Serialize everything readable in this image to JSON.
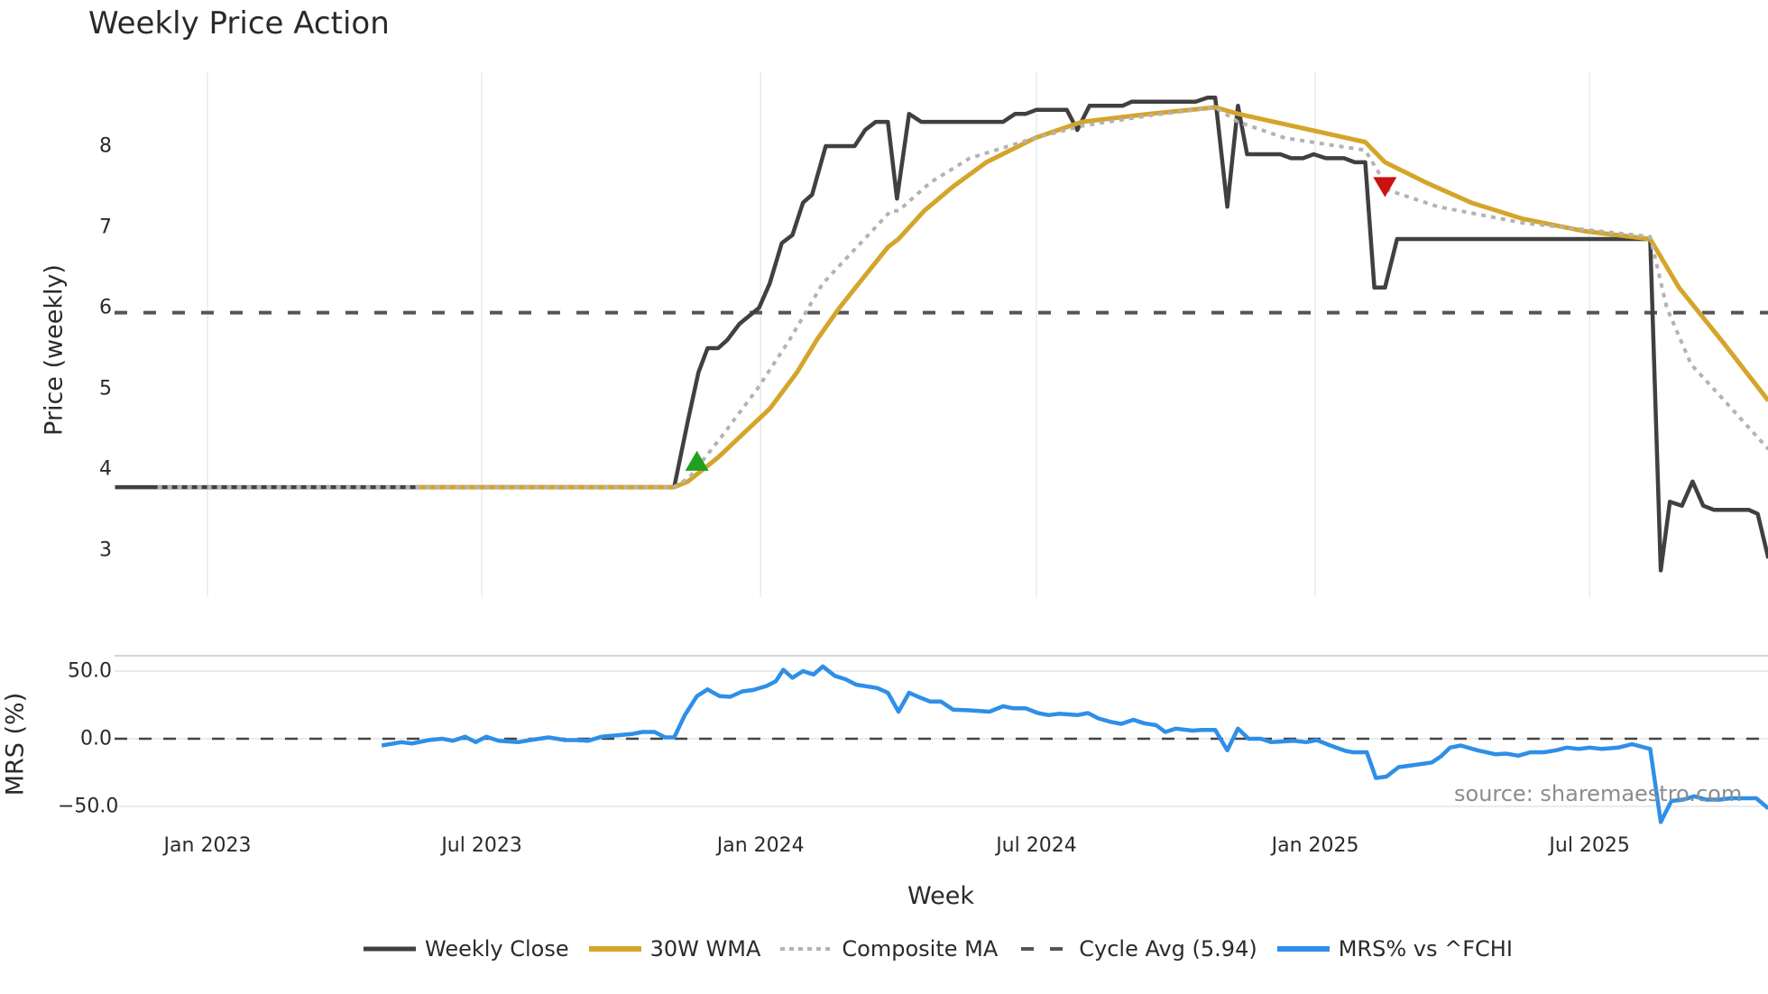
{
  "title": "Weekly Price Action",
  "source_note": "source: sharemaestro.com",
  "colors": {
    "weekly_close": "#404040",
    "wma": "#d4a52a",
    "composite": "#b3b3b3",
    "cycle_avg": "#555555",
    "mrs": "#2e8fe8",
    "buy_marker": "#1fa01f",
    "sell_marker": "#cc1111",
    "grid": "#e6ebf0"
  },
  "legend": [
    {
      "key": "weekly_close",
      "label": "Weekly Close",
      "style": "solid"
    },
    {
      "key": "wma",
      "label": "30W WMA",
      "style": "solid"
    },
    {
      "key": "composite",
      "label": "Composite MA",
      "style": "dot"
    },
    {
      "key": "cycle_avg",
      "label": "Cycle Avg (5.94)",
      "style": "dash"
    },
    {
      "key": "mrs",
      "label": "MRS% vs ^FCHI",
      "style": "solid"
    }
  ],
  "chart_data": [
    {
      "type": "line",
      "title": "Weekly Price Action",
      "xlabel": "Week",
      "ylabel": "Price (weekly)",
      "x_origin": "2023-01-01",
      "x_unit": "days since Jan 2023",
      "x_range": [
        -61,
        1030
      ],
      "ylim": [
        2.4,
        8.9
      ],
      "yticks": [
        3,
        4,
        5,
        6,
        7,
        8
      ],
      "xticks": [
        {
          "label": "Jan 2023",
          "x": 0
        },
        {
          "label": "Jul 2023",
          "x": 181
        },
        {
          "label": "Jan 2024",
          "x": 365
        },
        {
          "label": "Jul 2024",
          "x": 547
        },
        {
          "label": "Jan 2025",
          "x": 731
        },
        {
          "label": "Jul 2025",
          "x": 912
        }
      ],
      "grid": true,
      "hlines": [
        {
          "name": "Cycle Avg",
          "y": 5.94,
          "style": "dash"
        }
      ],
      "series": [
        {
          "name": "Weekly Close",
          "key": "weekly_close",
          "points": [
            [
              -61,
              3.78
            ],
            [
              308,
              3.78
            ],
            [
              317,
              4.6
            ],
            [
              324,
              5.2
            ],
            [
              330,
              5.5
            ],
            [
              337,
              5.5
            ],
            [
              343,
              5.6
            ],
            [
              351,
              5.8
            ],
            [
              364,
              6.0
            ],
            [
              371,
              6.3
            ],
            [
              379,
              6.8
            ],
            [
              386,
              6.9
            ],
            [
              393,
              7.3
            ],
            [
              399,
              7.4
            ],
            [
              408,
              8.0
            ],
            [
              427,
              8.0
            ],
            [
              434,
              8.2
            ],
            [
              441,
              8.3
            ],
            [
              449,
              8.3
            ],
            [
              455,
              7.35
            ],
            [
              463,
              8.4
            ],
            [
              471,
              8.3
            ],
            [
              525,
              8.3
            ],
            [
              533,
              8.4
            ],
            [
              540,
              8.4
            ],
            [
              547,
              8.45
            ],
            [
              567,
              8.45
            ],
            [
              574,
              8.2
            ],
            [
              582,
              8.5
            ],
            [
              604,
              8.5
            ],
            [
              610,
              8.55
            ],
            [
              652,
              8.55
            ],
            [
              660,
              8.6
            ],
            [
              665,
              8.6
            ],
            [
              673,
              7.25
            ],
            [
              680,
              8.5
            ],
            [
              686,
              7.9
            ],
            [
              708,
              7.9
            ],
            [
              715,
              7.85
            ],
            [
              723,
              7.85
            ],
            [
              730,
              7.9
            ],
            [
              738,
              7.85
            ],
            [
              750,
              7.85
            ],
            [
              757,
              7.8
            ],
            [
              764,
              7.8
            ],
            [
              770,
              6.25
            ],
            [
              777,
              6.25
            ],
            [
              785,
              6.85
            ],
            [
              952,
              6.85
            ],
            [
              959,
              2.75
            ],
            [
              965,
              3.6
            ],
            [
              973,
              3.55
            ],
            [
              980,
              3.85
            ],
            [
              987,
              3.55
            ],
            [
              994,
              3.5
            ],
            [
              1017,
              3.5
            ],
            [
              1023,
              3.45
            ],
            [
              1030,
              2.9
            ]
          ]
        },
        {
          "name": "30W WMA",
          "key": "wma",
          "points": [
            [
              139,
              3.78
            ],
            [
              308,
              3.78
            ],
            [
              317,
              3.85
            ],
            [
              337,
              4.15
            ],
            [
              354,
              4.45
            ],
            [
              371,
              4.75
            ],
            [
              389,
              5.2
            ],
            [
              402,
              5.6
            ],
            [
              417,
              6.0
            ],
            [
              434,
              6.4
            ],
            [
              449,
              6.75
            ],
            [
              456,
              6.85
            ],
            [
              473,
              7.2
            ],
            [
              492,
              7.5
            ],
            [
              514,
              7.8
            ],
            [
              546,
              8.1
            ],
            [
              577,
              8.3
            ],
            [
              622,
              8.4
            ],
            [
              665,
              8.48
            ],
            [
              680,
              8.4
            ],
            [
              764,
              8.05
            ],
            [
              777,
              7.8
            ],
            [
              804,
              7.55
            ],
            [
              834,
              7.3
            ],
            [
              868,
              7.1
            ],
            [
              908,
              6.95
            ],
            [
              952,
              6.85
            ],
            [
              971,
              6.25
            ],
            [
              1001,
              5.55
            ],
            [
              1030,
              4.85
            ]
          ]
        },
        {
          "name": "Composite MA",
          "key": "composite",
          "points": [
            [
              -33,
              3.78
            ],
            [
              308,
              3.78
            ],
            [
              318,
              3.9
            ],
            [
              339,
              4.4
            ],
            [
              363,
              5.0
            ],
            [
              384,
              5.6
            ],
            [
              406,
              6.3
            ],
            [
              436,
              6.9
            ],
            [
              451,
              7.2
            ],
            [
              456,
              7.2
            ],
            [
              477,
              7.55
            ],
            [
              503,
              7.85
            ],
            [
              546,
              8.1
            ],
            [
              577,
              8.25
            ],
            [
              622,
              8.38
            ],
            [
              665,
              8.48
            ],
            [
              680,
              8.3
            ],
            [
              711,
              8.1
            ],
            [
              764,
              7.95
            ],
            [
              780,
              7.45
            ],
            [
              812,
              7.25
            ],
            [
              868,
              7.05
            ],
            [
              952,
              6.88
            ],
            [
              963,
              6.0
            ],
            [
              979,
              5.3
            ],
            [
              1001,
              4.85
            ],
            [
              1030,
              4.25
            ]
          ]
        }
      ],
      "markers": [
        {
          "name": "buy-signal",
          "shape": "triangle-up",
          "x": 323,
          "y": 4.1
        },
        {
          "name": "sell-signal",
          "shape": "triangle-down",
          "x": 777,
          "y": 7.5
        }
      ]
    },
    {
      "type": "line",
      "title": "",
      "xlabel": "Week",
      "ylabel": "MRS (%)",
      "x_origin": "2023-01-01",
      "ylim": [
        -62,
        61
      ],
      "yticks": [
        -50.0,
        0.0,
        50.0
      ],
      "ytick_labels": [
        "−50.0",
        "0.0",
        "50.0"
      ],
      "hlines": [
        {
          "name": "zero",
          "y": 0,
          "style": "dash"
        }
      ],
      "series": [
        {
          "name": "MRS% vs ^FCHI",
          "key": "mrs",
          "points": [
            [
              115,
              -5
            ],
            [
              128,
              -2.5
            ],
            [
              135,
              -3.5
            ],
            [
              146,
              -1
            ],
            [
              155,
              0
            ],
            [
              162,
              -1.5
            ],
            [
              170,
              1.5
            ],
            [
              177,
              -2.5
            ],
            [
              184,
              1.5
            ],
            [
              192,
              -1.5
            ],
            [
              205,
              -2.5
            ],
            [
              213,
              -1
            ],
            [
              225,
              1
            ],
            [
              236,
              -1
            ],
            [
              244,
              -1
            ],
            [
              251,
              -1.5
            ],
            [
              260,
              1.5
            ],
            [
              280,
              3.5
            ],
            [
              287,
              5
            ],
            [
              295,
              5
            ],
            [
              302,
              1
            ],
            [
              308,
              1
            ],
            [
              315,
              17.5
            ],
            [
              323,
              31.5
            ],
            [
              330,
              36.5
            ],
            [
              338,
              31.5
            ],
            [
              345,
              31
            ],
            [
              353,
              35
            ],
            [
              360,
              36
            ],
            [
              369,
              39
            ],
            [
              375,
              42.5
            ],
            [
              380,
              51
            ],
            [
              386,
              45
            ],
            [
              393,
              50
            ],
            [
              400,
              47.5
            ],
            [
              406,
              53.5
            ],
            [
              414,
              46.5
            ],
            [
              421,
              44
            ],
            [
              428,
              40
            ],
            [
              442,
              37.5
            ],
            [
              449,
              34
            ],
            [
              456,
              20
            ],
            [
              463,
              34
            ],
            [
              469,
              31
            ],
            [
              477,
              27.5
            ],
            [
              484,
              27.5
            ],
            [
              492,
              21.5
            ],
            [
              503,
              21
            ],
            [
              516,
              20
            ],
            [
              525,
              24
            ],
            [
              532,
              22.5
            ],
            [
              540,
              22.5
            ],
            [
              548,
              19
            ],
            [
              555,
              17.5
            ],
            [
              562,
              18.5
            ],
            [
              574,
              17.5
            ],
            [
              581,
              19
            ],
            [
              588,
              15
            ],
            [
              596,
              12.5
            ],
            [
              603,
              11
            ],
            [
              611,
              14
            ],
            [
              618,
              11.5
            ],
            [
              626,
              10
            ],
            [
              632,
              5
            ],
            [
              639,
              7.5
            ],
            [
              650,
              6
            ],
            [
              656,
              6.5
            ],
            [
              665,
              6.5
            ],
            [
              673,
              -8.5
            ],
            [
              680,
              7.5
            ],
            [
              687,
              0
            ],
            [
              695,
              0
            ],
            [
              702,
              -2.5
            ],
            [
              717,
              -1.5
            ],
            [
              725,
              -2.5
            ],
            [
              732,
              -1
            ],
            [
              741,
              -5
            ],
            [
              751,
              -9
            ],
            [
              756,
              -10
            ],
            [
              765,
              -10
            ],
            [
              771,
              -29
            ],
            [
              778,
              -28
            ],
            [
              786,
              -21
            ],
            [
              799,
              -19
            ],
            [
              808,
              -17.5
            ],
            [
              814,
              -13
            ],
            [
              820,
              -6.5
            ],
            [
              827,
              -5
            ],
            [
              838,
              -8.5
            ],
            [
              850,
              -11.5
            ],
            [
              857,
              -11
            ],
            [
              865,
              -12.5
            ],
            [
              873,
              -10
            ],
            [
              882,
              -10
            ],
            [
              890,
              -8.5
            ],
            [
              897,
              -6.5
            ],
            [
              905,
              -7.5
            ],
            [
              912,
              -6.5
            ],
            [
              920,
              -7.5
            ],
            [
              931,
              -6.5
            ],
            [
              940,
              -4
            ],
            [
              952,
              -7.5
            ],
            [
              959,
              -61.5
            ],
            [
              966,
              -46
            ],
            [
              974,
              -45
            ],
            [
              981,
              -42.5
            ],
            [
              989,
              -45
            ],
            [
              998,
              -45
            ],
            [
              1005,
              -44
            ],
            [
              1015,
              -44
            ],
            [
              1022,
              -44
            ],
            [
              1030,
              -51.5
            ]
          ]
        }
      ]
    }
  ]
}
